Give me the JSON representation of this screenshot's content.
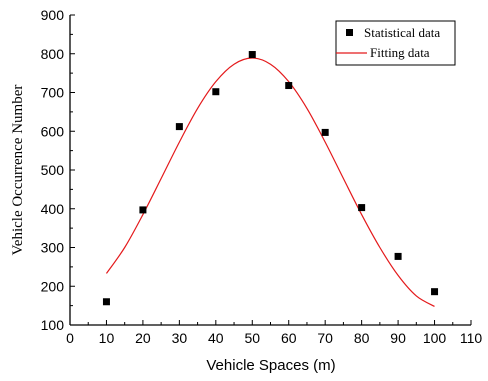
{
  "chart_data": {
    "type": "scatter",
    "title": "",
    "xlabel": "Vehicle Spaces (m)",
    "ylabel": "Vehicle Occurrence Number",
    "xlim": [
      0,
      110
    ],
    "ylim": [
      100,
      900
    ],
    "xticks": [
      0,
      10,
      20,
      30,
      40,
      50,
      60,
      70,
      80,
      90,
      100,
      110
    ],
    "yticks": [
      100,
      200,
      300,
      400,
      500,
      600,
      700,
      800,
      900
    ],
    "grid": false,
    "legend_position": "top-right",
    "series": [
      {
        "name": "Statistical data",
        "kind": "scatter",
        "marker": "square",
        "color": "#000000",
        "x": [
          10,
          20,
          30,
          40,
          50,
          60,
          70,
          80,
          90,
          100
        ],
        "y": [
          160,
          397,
          612,
          702,
          798,
          718,
          597,
          403,
          277,
          186
        ]
      },
      {
        "name": "Fitting data",
        "kind": "line",
        "color": "#e41a1c",
        "x": [
          10,
          15,
          20,
          25,
          30,
          35,
          40,
          45,
          50,
          55,
          60,
          65,
          70,
          75,
          80,
          85,
          90,
          95,
          100
        ],
        "y": [
          233,
          300,
          385,
          478,
          572,
          659,
          728,
          773,
          789,
          773,
          728,
          659,
          572,
          478,
          385,
          300,
          228,
          175,
          148
        ]
      }
    ]
  }
}
